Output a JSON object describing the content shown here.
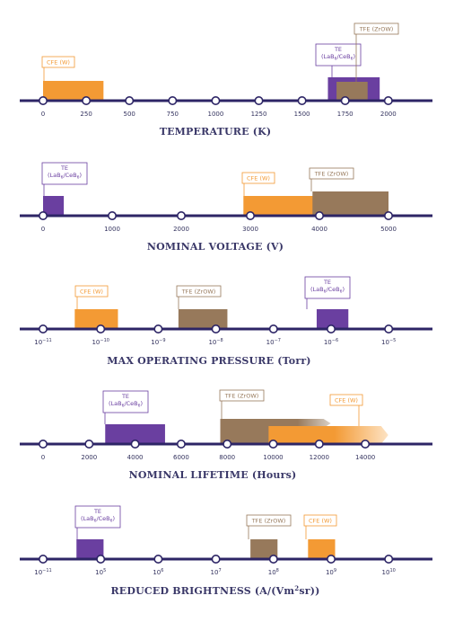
{
  "colors": {
    "axis": "#2d2566",
    "te": "#6a3fa0",
    "cfe": "#f39a34",
    "tfe": "#97795b",
    "title": "#3a3868"
  },
  "labels": {
    "cfe": "CFE (W)",
    "tfe": "TFE (ZrOW)",
    "te_line1": "TE",
    "te_line2": "(LaB6/CeB6)"
  },
  "chart_data": [
    {
      "type": "range",
      "title": "TEMPERATURE (K)",
      "ticks": [
        "0",
        "250",
        "500",
        "750",
        "1000",
        "1250",
        "1500",
        "1750",
        "2000"
      ],
      "ranges": [
        {
          "label": "CFE (W)",
          "from": 0,
          "to": 350
        },
        {
          "label": "TE (LaB6/CeB6)",
          "from": 1650,
          "to": 1950
        },
        {
          "label": "TFE (ZrOW)",
          "from": 1700,
          "to": 1880
        }
      ]
    },
    {
      "type": "range",
      "title": "NOMINAL VOLTAGE (V)",
      "ticks": [
        "0",
        "1000",
        "2000",
        "3000",
        "4000",
        "5000"
      ],
      "ranges": [
        {
          "label": "TE (LaB6/CeB6)",
          "from": 0,
          "to": 300
        },
        {
          "label": "CFE (W)",
          "from": 2900,
          "to": 4100
        },
        {
          "label": "TFE (ZrOW)",
          "from": 3900,
          "to": 5000
        }
      ]
    },
    {
      "type": "range",
      "title": "MAX OPERATING PRESSURE (Torr)",
      "scale": "log",
      "ticks": [
        "10^-11",
        "10^-10",
        "10^-9",
        "10^-8",
        "10^-7",
        "10^-6",
        "10^-5"
      ],
      "ranges": [
        {
          "label": "CFE (W)",
          "from": "3e-11",
          "to": "2e-10"
        },
        {
          "label": "TFE (ZrOW)",
          "from": "3e-9",
          "to": "2e-8"
        },
        {
          "label": "TE (LaB6/CeB6)",
          "from": "3e-7",
          "to": "2e-6"
        }
      ]
    },
    {
      "type": "range",
      "title": "NOMINAL LIFETIME (Hours)",
      "ticks": [
        "0",
        "2000",
        "4000",
        "6000",
        "8000",
        "10000",
        "12000",
        "14000"
      ],
      "ranges": [
        {
          "label": "TE (LaB6/CeB6)",
          "from": 2700,
          "to": 5300
        },
        {
          "label": "TFE (ZrOW)",
          "from": 7700,
          "to": 12500
        },
        {
          "label": "CFE (W)",
          "from": 9800,
          "to": 15000
        }
      ]
    },
    {
      "type": "range",
      "title": "REDUCED BRIGHTNESS (A/(Vm2sr))",
      "scale": "log",
      "ticks": [
        "10^-11",
        "10^5",
        "10^6",
        "10^7",
        "10^8",
        "10^9",
        "10^10"
      ],
      "ranges": [
        {
          "label": "TE (LaB6/CeB6)",
          "from": "3e4",
          "to": "1e5"
        },
        {
          "label": "TFE (ZrOW)",
          "from": "4e7",
          "to": "1e8"
        },
        {
          "label": "CFE (W)",
          "from": "4e8",
          "to": "1e9"
        }
      ]
    }
  ]
}
